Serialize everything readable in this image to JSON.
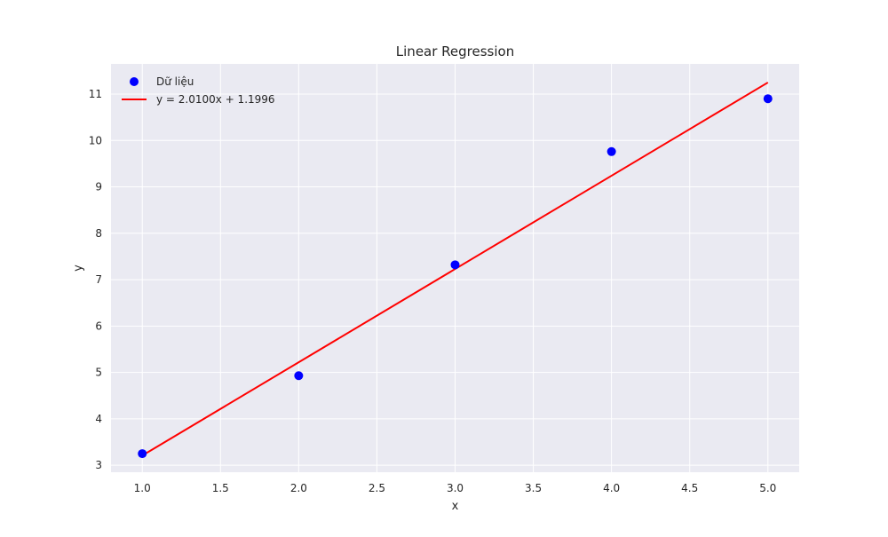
{
  "chart_data": {
    "type": "scatter",
    "title": "Linear Regression",
    "xlabel": "x",
    "ylabel": "y",
    "xlim": [
      0.8,
      5.2
    ],
    "ylim": [
      2.85,
      11.65
    ],
    "x_ticks": [
      1.0,
      1.5,
      2.0,
      2.5,
      3.0,
      3.5,
      4.0,
      4.5,
      5.0
    ],
    "x_tick_labels": [
      "1.0",
      "1.5",
      "2.0",
      "2.5",
      "3.0",
      "3.5",
      "4.0",
      "4.5",
      "5.0"
    ],
    "y_ticks": [
      3,
      4,
      5,
      6,
      7,
      8,
      9,
      10,
      11
    ],
    "y_tick_labels": [
      "3",
      "4",
      "5",
      "6",
      "7",
      "8",
      "9",
      "10",
      "11"
    ],
    "grid": true,
    "legend_position": "top-left",
    "series": [
      {
        "name": "Dữ liệu",
        "kind": "scatter",
        "color": "#0000ff",
        "x": [
          1,
          2,
          3,
          4,
          5
        ],
        "y": [
          3.25,
          4.93,
          7.32,
          9.76,
          10.9
        ]
      },
      {
        "name": "y = 2.0100x + 1.1996",
        "kind": "line",
        "color": "#ff0000",
        "slope": 2.01,
        "intercept": 1.1996,
        "x": [
          1,
          5
        ],
        "y": [
          3.2096,
          11.2496
        ]
      }
    ],
    "colors": {
      "plot_background": "#eaeaf2",
      "grid": "#ffffff",
      "text": "#262626"
    }
  }
}
